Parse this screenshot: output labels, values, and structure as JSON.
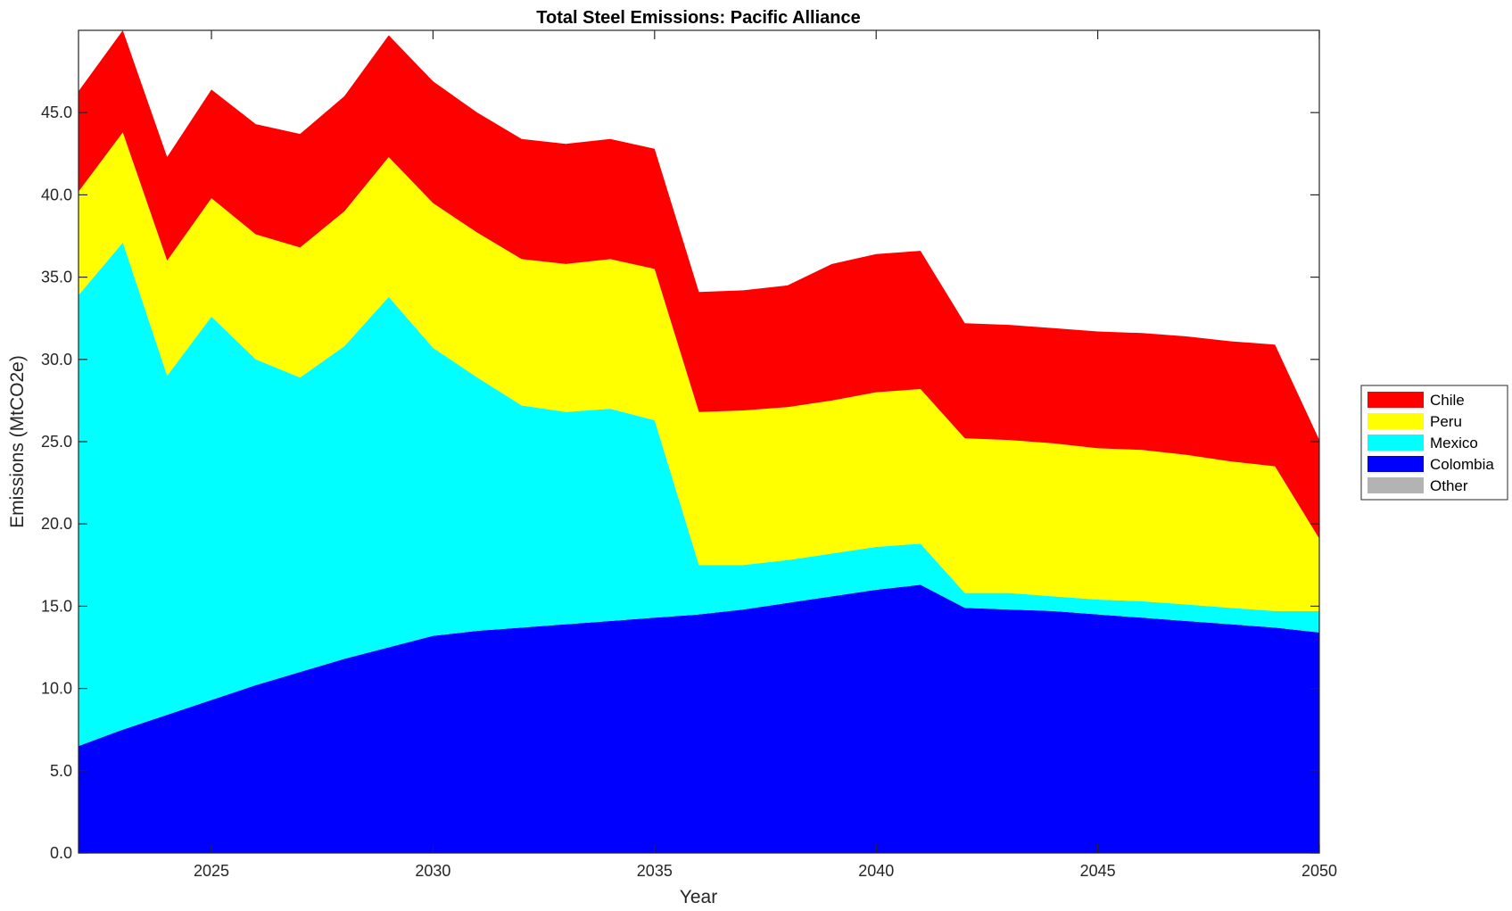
{
  "chart_data": {
    "type": "area",
    "stacked": true,
    "title": "Total Steel Emissions: Pacific Alliance",
    "xlabel": "Year",
    "ylabel": "Emissions (MtCO2e)",
    "xlim": [
      2022,
      2050
    ],
    "ylim": [
      0,
      50
    ],
    "xticks": [
      2025,
      2030,
      2035,
      2040,
      2045,
      2050
    ],
    "xtick_labels": [
      "2025",
      "2030",
      "2035",
      "2040",
      "2045",
      "2050"
    ],
    "yticks": [
      0,
      5,
      10,
      15,
      20,
      25,
      30,
      35,
      40,
      45
    ],
    "ytick_labels": [
      "0.0",
      "5.0",
      "10.0",
      "15.0",
      "20.0",
      "25.0",
      "30.0",
      "35.0",
      "40.0",
      "45.0"
    ],
    "grid": false,
    "legend_position": "outside-right",
    "x": [
      2022,
      2023,
      2024,
      2025,
      2026,
      2027,
      2028,
      2029,
      2030,
      2031,
      2032,
      2033,
      2034,
      2035,
      2036,
      2037,
      2038,
      2039,
      2040,
      2041,
      2042,
      2043,
      2044,
      2045,
      2046,
      2047,
      2048,
      2049,
      2050
    ],
    "series": [
      {
        "name": "Colombia",
        "color": "#0000ff",
        "values": [
          6.5,
          7.5,
          8.4,
          9.3,
          10.2,
          11.0,
          11.8,
          12.5,
          13.2,
          13.5,
          13.7,
          13.9,
          14.1,
          14.3,
          14.5,
          14.8,
          15.2,
          15.6,
          16.0,
          16.3,
          14.9,
          14.8,
          14.7,
          14.5,
          14.3,
          14.1,
          13.9,
          13.7,
          13.4
        ]
      },
      {
        "name": "Mexico",
        "color": "#00ffff",
        "values": [
          27.4,
          29.6,
          20.6,
          23.3,
          19.8,
          17.9,
          19.0,
          21.3,
          17.5,
          15.4,
          13.5,
          12.9,
          12.9,
          12.0,
          3.0,
          2.7,
          2.6,
          2.6,
          2.6,
          2.5,
          0.9,
          1.0,
          0.9,
          0.9,
          1.0,
          1.0,
          1.0,
          1.0,
          1.3
        ]
      },
      {
        "name": "Peru",
        "color": "#ffff00",
        "values": [
          6.3,
          6.7,
          7.0,
          7.2,
          7.6,
          7.9,
          8.2,
          8.5,
          8.8,
          8.8,
          8.9,
          9.0,
          9.1,
          9.2,
          9.3,
          9.4,
          9.3,
          9.3,
          9.4,
          9.4,
          9.4,
          9.3,
          9.3,
          9.2,
          9.2,
          9.1,
          8.9,
          8.8,
          4.4
        ]
      },
      {
        "name": "Chile",
        "color": "#ff0000",
        "values": [
          6.1,
          6.2,
          6.3,
          6.6,
          6.7,
          6.9,
          7.0,
          7.4,
          7.4,
          7.3,
          7.3,
          7.3,
          7.3,
          7.3,
          7.3,
          7.3,
          7.4,
          8.3,
          8.4,
          8.4,
          7.0,
          7.0,
          7.0,
          7.1,
          7.1,
          7.2,
          7.3,
          7.4,
          6.0
        ]
      },
      {
        "name": "Other",
        "color": "#b3b3b3",
        "values": [
          0,
          0,
          0,
          0,
          0,
          0,
          0,
          0,
          0,
          0,
          0,
          0,
          0,
          0,
          0,
          0,
          0,
          0,
          0,
          0,
          0,
          0,
          0,
          0,
          0,
          0,
          0,
          0,
          0
        ]
      }
    ],
    "legend": [
      "Chile",
      "Peru",
      "Mexico",
      "Colombia",
      "Other"
    ]
  }
}
